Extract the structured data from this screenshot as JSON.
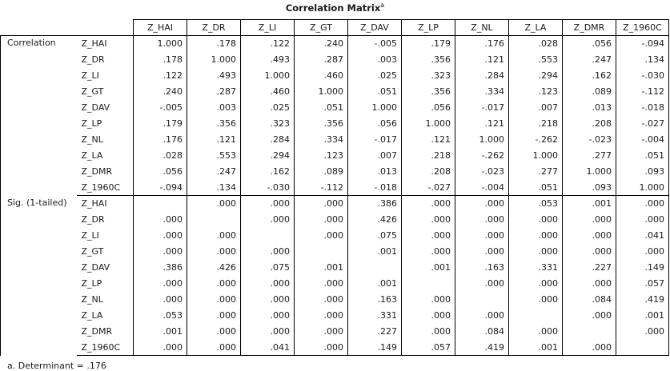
{
  "title": "Correlation Matrix",
  "title_superscript": "a",
  "columns": [
    "Z_HAI",
    "Z_DR",
    "Z_LI",
    "Z_GT",
    "Z_DAV",
    "Z_LP",
    "Z_NL",
    "Z_LA",
    "Z_DMR",
    "Z_1960C"
  ],
  "groups": [
    {
      "label": "Correlation",
      "rows": [
        {
          "var": "Z_HAI",
          "values": [
            "1.000",
            ".178",
            ".122",
            ".240",
            "-.005",
            ".179",
            ".176",
            ".028",
            ".056",
            "-.094"
          ]
        },
        {
          "var": "Z_DR",
          "values": [
            ".178",
            "1.000",
            ".493",
            ".287",
            ".003",
            ".356",
            ".121",
            ".553",
            ".247",
            ".134"
          ]
        },
        {
          "var": "Z_LI",
          "values": [
            ".122",
            ".493",
            "1.000",
            ".460",
            ".025",
            ".323",
            ".284",
            ".294",
            ".162",
            "-.030"
          ]
        },
        {
          "var": "Z_GT",
          "values": [
            ".240",
            ".287",
            ".460",
            "1.000",
            ".051",
            ".356",
            ".334",
            ".123",
            ".089",
            "-.112"
          ]
        },
        {
          "var": "Z_DAV",
          "values": [
            "-.005",
            ".003",
            ".025",
            ".051",
            "1.000",
            ".056",
            "-.017",
            ".007",
            ".013",
            "-.018"
          ]
        },
        {
          "var": "Z_LP",
          "values": [
            ".179",
            ".356",
            ".323",
            ".356",
            ".056",
            "1.000",
            ".121",
            ".218",
            ".208",
            "-.027"
          ]
        },
        {
          "var": "Z_NL",
          "values": [
            ".176",
            ".121",
            ".284",
            ".334",
            "-.017",
            ".121",
            "1.000",
            "-.262",
            "-.023",
            "-.004"
          ]
        },
        {
          "var": "Z_LA",
          "values": [
            ".028",
            ".553",
            ".294",
            ".123",
            ".007",
            ".218",
            "-.262",
            "1.000",
            ".277",
            ".051"
          ]
        },
        {
          "var": "Z_DMR",
          "values": [
            ".056",
            ".247",
            ".162",
            ".089",
            ".013",
            ".208",
            "-.023",
            ".277",
            "1.000",
            ".093"
          ]
        },
        {
          "var": "Z_1960C",
          "values": [
            "-.094",
            ".134",
            "-.030",
            "-.112",
            "-.018",
            "-.027",
            "-.004",
            ".051",
            ".093",
            "1.000"
          ]
        }
      ]
    },
    {
      "label": "Sig. (1-tailed)",
      "rows": [
        {
          "var": "Z_HAI",
          "values": [
            "",
            ".000",
            ".000",
            ".000",
            ".386",
            ".000",
            ".000",
            ".053",
            ".001",
            ".000"
          ]
        },
        {
          "var": "Z_DR",
          "values": [
            ".000",
            "",
            ".000",
            ".000",
            ".426",
            ".000",
            ".000",
            ".000",
            ".000",
            ".000"
          ]
        },
        {
          "var": "Z_LI",
          "values": [
            ".000",
            ".000",
            "",
            ".000",
            ".075",
            ".000",
            ".000",
            ".000",
            ".000",
            ".041"
          ]
        },
        {
          "var": "Z_GT",
          "values": [
            ".000",
            ".000",
            ".000",
            "",
            ".001",
            ".000",
            ".000",
            ".000",
            ".000",
            ".000"
          ]
        },
        {
          "var": "Z_DAV",
          "values": [
            ".386",
            ".426",
            ".075",
            ".001",
            "",
            ".001",
            ".163",
            ".331",
            ".227",
            ".149"
          ]
        },
        {
          "var": "Z_LP",
          "values": [
            ".000",
            ".000",
            ".000",
            ".000",
            ".001",
            "",
            ".000",
            ".000",
            ".000",
            ".057"
          ]
        },
        {
          "var": "Z_NL",
          "values": [
            ".000",
            ".000",
            ".000",
            ".000",
            ".163",
            ".000",
            "",
            ".000",
            ".084",
            ".419"
          ]
        },
        {
          "var": "Z_LA",
          "values": [
            ".053",
            ".000",
            ".000",
            ".000",
            ".331",
            ".000",
            ".000",
            "",
            ".000",
            ".001"
          ]
        },
        {
          "var": "Z_DMR",
          "values": [
            ".001",
            ".000",
            ".000",
            ".000",
            ".227",
            ".000",
            ".084",
            ".000",
            "",
            ".000"
          ]
        },
        {
          "var": "Z_1960C",
          "values": [
            ".000",
            ".000",
            ".041",
            ".000",
            ".149",
            ".057",
            ".419",
            ".001",
            ".000",
            ""
          ]
        }
      ]
    }
  ],
  "footnote": "a. Determinant = .176"
}
